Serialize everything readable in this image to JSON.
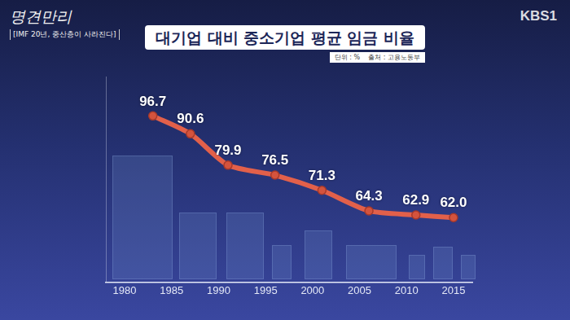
{
  "chart_data": {
    "type": "line",
    "title": "대기업 대비 중소기업 평균 임금 비율",
    "annotations": [
      "단위 : %",
      "출처 : 고용노동부"
    ],
    "x": [
      1983,
      1987,
      1991,
      1996,
      2001,
      2006,
      2011,
      2015
    ],
    "values": [
      96.7,
      90.6,
      79.9,
      76.5,
      71.3,
      64.3,
      62.9,
      62.0
    ],
    "value_labels": [
      "96.7",
      "90.6",
      "79.9",
      "76.5",
      "71.3",
      "64.3",
      "62.9",
      "62.0"
    ],
    "color": "#e2604a",
    "marker": "circle",
    "line_style": "solid",
    "xlim": [
      1978,
      2017
    ],
    "xticks": [
      1980,
      1985,
      1990,
      1995,
      2000,
      2005,
      2010,
      2015
    ],
    "ylim": [
      40,
      110
    ],
    "grid": false,
    "data_labels": true,
    "tick_labels": "x"
  },
  "program": {
    "name": "명견만리",
    "episode": "[IMF 20년, 중산층이 사라진다]"
  },
  "broadcaster": "KBS1"
}
